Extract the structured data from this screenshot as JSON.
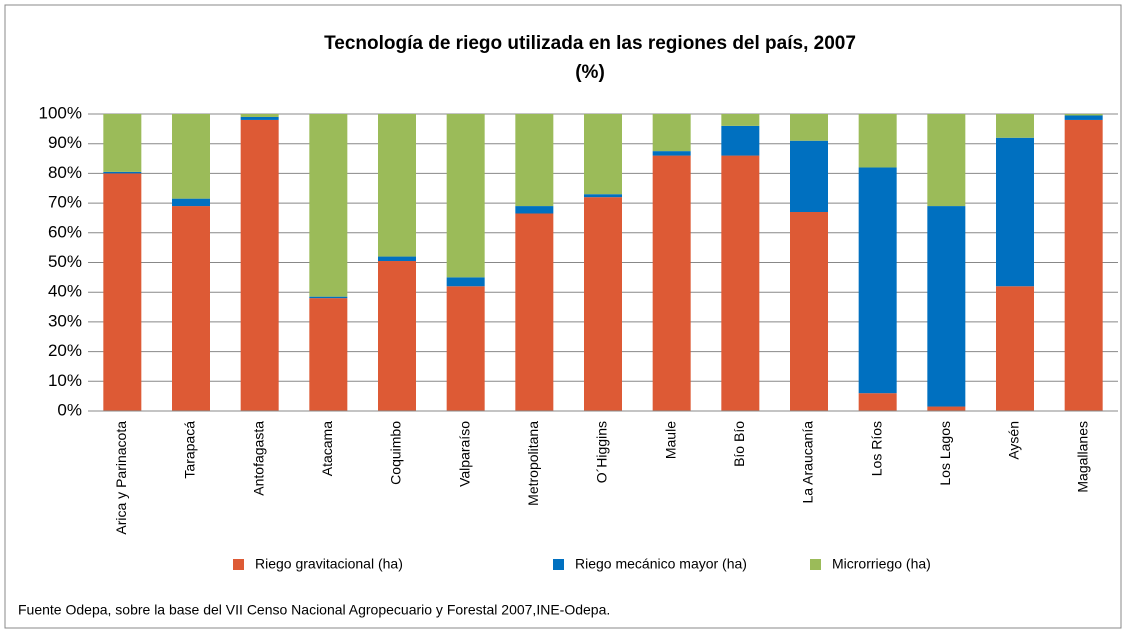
{
  "chart_data": {
    "type": "bar",
    "stacked": true,
    "title": "Tecnología de riego utilizada en las regiones del país, 2007",
    "subtitle": "(%)",
    "source": "Fuente Odepa, sobre la base del VII Censo Nacional Agropecuario y Forestal 2007,INE-Odepa.",
    "categories": [
      "Arica y Parinacota",
      "Tarapacá",
      "Antofagasta",
      "Atacama",
      "Coquimbo",
      "Valparaíso",
      "Metropolitana",
      "O´Higgins",
      "Maule",
      "Bío Bío",
      "La Araucanía",
      "Los Ríos",
      "Los Lagos",
      "Aysén",
      "Magallanes"
    ],
    "series": [
      {
        "name": "Riego gravitacional (ha)",
        "color": "#dd5a35",
        "values": [
          80,
          69,
          98,
          38,
          50.5,
          42,
          66.5,
          72,
          86,
          86,
          67,
          6,
          1.5,
          42,
          98
        ]
      },
      {
        "name": "Riego mecánico mayor (ha)",
        "color": "#0070c0",
        "values": [
          0.5,
          2.5,
          1,
          0.5,
          1.5,
          3,
          2.5,
          1,
          1.5,
          10,
          24,
          76,
          67.5,
          50,
          1.5
        ]
      },
      {
        "name": "Microrriego (ha)",
        "color": "#9bbb59",
        "values": [
          19.5,
          28.5,
          1,
          61.5,
          48,
          55,
          31,
          27,
          12.5,
          4,
          9,
          18,
          31,
          8,
          0.5
        ]
      }
    ],
    "ylim": [
      0,
      100
    ],
    "yticks": [
      {
        "value": 0,
        "label": "0%"
      },
      {
        "value": 10,
        "label": "10%"
      },
      {
        "value": 20,
        "label": "20%"
      },
      {
        "value": 30,
        "label": "30%"
      },
      {
        "value": 40,
        "label": "40%"
      },
      {
        "value": 50,
        "label": "50%"
      },
      {
        "value": 60,
        "label": "60%"
      },
      {
        "value": 70,
        "label": "70%"
      },
      {
        "value": 80,
        "label": "80%"
      },
      {
        "value": 90,
        "label": "90%"
      },
      {
        "value": 100,
        "label": "100%"
      }
    ],
    "grid": true,
    "legend": "bottom"
  }
}
